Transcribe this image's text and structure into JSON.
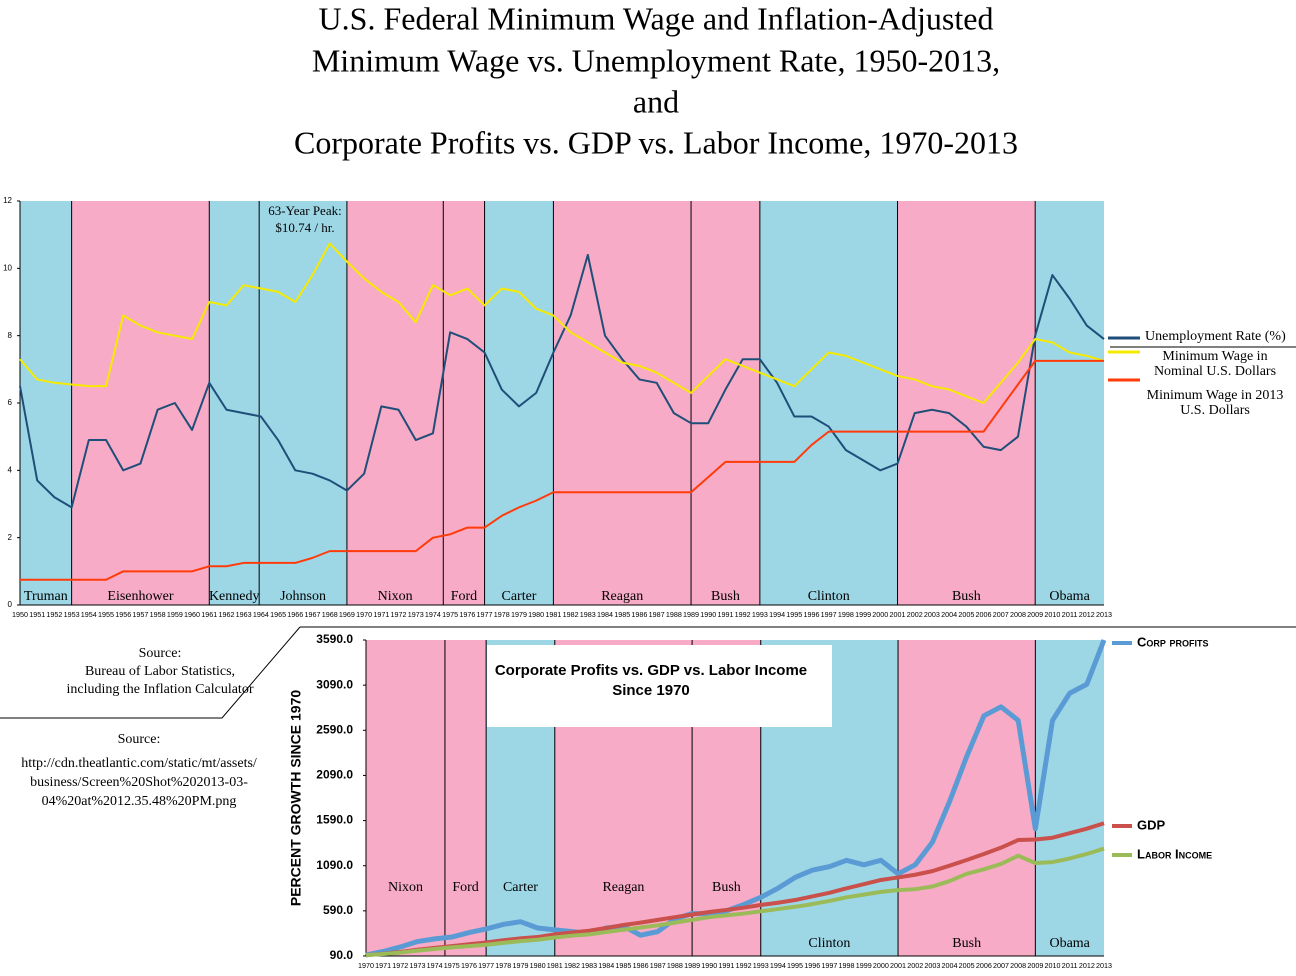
{
  "page_title": [
    "U.S. Federal Minimum Wage and Inflation-Adjusted",
    "Minimum Wage vs. Unemployment Rate, 1950-2013,",
    "and",
    "Corporate Profits vs. GDP vs. Labor Income, 1970-2013"
  ],
  "sources": [
    {
      "heading": "Source:",
      "lines": [
        "Bureau of Labor Statistics,",
        "including the Inflation Calculator"
      ]
    },
    {
      "heading": "Source:",
      "lines": [
        "http://cdn.theatlantic.com/static/mt/assets/",
        "business/Screen%20Shot%202013-03-",
        "04%20at%2012.35.48%20PM.png"
      ]
    }
  ],
  "chart_data": [
    {
      "type": "line",
      "annotation": [
        "63-Year Peak:",
        "$10.74 / hr."
      ],
      "x": [
        1950,
        1951,
        1952,
        1953,
        1954,
        1955,
        1956,
        1957,
        1958,
        1959,
        1960,
        1961,
        1962,
        1963,
        1964,
        1965,
        1966,
        1967,
        1968,
        1969,
        1970,
        1971,
        1972,
        1973,
        1974,
        1975,
        1976,
        1977,
        1978,
        1979,
        1980,
        1981,
        1982,
        1983,
        1984,
        1985,
        1986,
        1987,
        1988,
        1989,
        1990,
        1991,
        1992,
        1993,
        1994,
        1995,
        1996,
        1997,
        1998,
        1999,
        2000,
        2001,
        2002,
        2003,
        2004,
        2005,
        2006,
        2007,
        2008,
        2009,
        2010,
        2011,
        2012,
        2013
      ],
      "xlim": [
        1950,
        2013
      ],
      "ylim": [
        0,
        12
      ],
      "yticks": [
        0,
        2,
        4,
        6,
        8,
        10,
        12
      ],
      "grid": false,
      "bands": [
        {
          "label": "Truman",
          "start": 1950,
          "end": 1953,
          "color": "#9dd7e6"
        },
        {
          "label": "Eisenhower",
          "start": 1953,
          "end": 1961,
          "color": "#f8abc6"
        },
        {
          "label": "Kennedy",
          "start": 1961,
          "end": 1963.9,
          "color": "#9dd7e6"
        },
        {
          "label": "Johnson",
          "start": 1963.9,
          "end": 1969,
          "color": "#9dd7e6"
        },
        {
          "label": "Nixon",
          "start": 1969,
          "end": 1974.6,
          "color": "#f8abc6"
        },
        {
          "label": "Ford",
          "start": 1974.6,
          "end": 1977,
          "color": "#f8abc6"
        },
        {
          "label": "Carter",
          "start": 1977,
          "end": 1981,
          "color": "#9dd7e6"
        },
        {
          "label": "Reagan",
          "start": 1981,
          "end": 1989,
          "color": "#f8abc6"
        },
        {
          "label": "Bush",
          "start": 1989,
          "end": 1993,
          "color": "#f8abc6"
        },
        {
          "label": "Clinton",
          "start": 1993,
          "end": 2001,
          "color": "#9dd7e6"
        },
        {
          "label": "Bush",
          "start": 2001,
          "end": 2009,
          "color": "#f8abc6"
        },
        {
          "label": "Obama",
          "start": 2009,
          "end": 2013,
          "color": "#9dd7e6"
        }
      ],
      "series": [
        {
          "name": "Unemployment Rate (%)",
          "color": "#1f4e79",
          "values": [
            6.5,
            3.7,
            3.2,
            2.9,
            4.9,
            4.9,
            4.0,
            4.2,
            5.8,
            6.0,
            5.2,
            6.6,
            5.8,
            5.7,
            5.6,
            4.9,
            4.0,
            3.9,
            3.7,
            3.4,
            3.9,
            5.9,
            5.8,
            4.9,
            5.1,
            8.1,
            7.9,
            7.5,
            6.4,
            5.9,
            6.3,
            7.5,
            8.6,
            10.4,
            8.0,
            7.3,
            6.7,
            6.6,
            5.7,
            5.4,
            5.4,
            6.4,
            7.3,
            7.3,
            6.6,
            5.6,
            5.6,
            5.3,
            4.6,
            4.3,
            4.0,
            4.2,
            5.7,
            5.8,
            5.7,
            5.3,
            4.7,
            4.6,
            5.0,
            8.0,
            9.8,
            9.1,
            8.3,
            7.9
          ]
        },
        {
          "name": "Minimum Wage in Nominal U.S. Dollars",
          "color": "#f5ea00",
          "values": [
            7.3,
            6.7,
            6.6,
            6.55,
            6.5,
            6.5,
            8.6,
            8.3,
            8.1,
            8.0,
            7.9,
            9.0,
            8.9,
            9.5,
            9.4,
            9.3,
            9.0,
            9.8,
            10.74,
            10.2,
            9.7,
            9.3,
            9.0,
            8.4,
            9.5,
            9.2,
            9.4,
            8.9,
            9.4,
            9.3,
            8.8,
            8.6,
            8.1,
            7.8,
            7.5,
            7.2,
            7.1,
            6.9,
            6.6,
            6.3,
            6.8,
            7.3,
            7.1,
            6.9,
            6.7,
            6.5,
            7.0,
            7.5,
            7.4,
            7.2,
            7.0,
            6.8,
            6.7,
            6.5,
            6.4,
            6.2,
            6.0,
            6.6,
            7.2,
            7.9,
            7.8,
            7.5,
            7.4,
            7.25
          ]
        },
        {
          "name": "Minimum Wage in 2013 U.S. Dollars",
          "color": "#ff3b0a",
          "values": [
            0.75,
            0.75,
            0.75,
            0.75,
            0.75,
            0.75,
            1.0,
            1.0,
            1.0,
            1.0,
            1.0,
            1.15,
            1.15,
            1.25,
            1.25,
            1.25,
            1.25,
            1.4,
            1.6,
            1.6,
            1.6,
            1.6,
            1.6,
            1.6,
            2.0,
            2.1,
            2.3,
            2.3,
            2.65,
            2.9,
            3.1,
            3.35,
            3.35,
            3.35,
            3.35,
            3.35,
            3.35,
            3.35,
            3.35,
            3.35,
            3.8,
            4.25,
            4.25,
            4.25,
            4.25,
            4.25,
            4.75,
            5.15,
            5.15,
            5.15,
            5.15,
            5.15,
            5.15,
            5.15,
            5.15,
            5.15,
            5.15,
            5.85,
            6.55,
            7.25,
            7.25,
            7.25,
            7.25,
            7.25
          ]
        }
      ]
    },
    {
      "type": "line",
      "title": [
        "Corporate Profits vs. GDP vs. Labor Income",
        "Since 1970"
      ],
      "ylabel": "PERCENT GROWTH SINCE 1970",
      "x": [
        1970,
        1971,
        1972,
        1973,
        1974,
        1975,
        1976,
        1977,
        1978,
        1979,
        1980,
        1981,
        1982,
        1983,
        1984,
        1985,
        1986,
        1987,
        1988,
        1989,
        1990,
        1991,
        1992,
        1993,
        1994,
        1995,
        1996,
        1997,
        1998,
        1999,
        2000,
        2001,
        2002,
        2003,
        2004,
        2005,
        2006,
        2007,
        2008,
        2009,
        2010,
        2011,
        2012,
        2013
      ],
      "xlim": [
        1970,
        2013
      ],
      "ylim": [
        90,
        3590
      ],
      "yticks": [
        {
          "value": 90,
          "label": "90.0"
        },
        {
          "value": 590,
          "label": "590.0"
        },
        {
          "value": 1090,
          "label": "1090.0"
        },
        {
          "value": 1590,
          "label": "1590.0"
        },
        {
          "value": 2090,
          "label": "2090.0"
        },
        {
          "value": 2590,
          "label": "2590.0"
        },
        {
          "value": 3090,
          "label": "3090.0"
        },
        {
          "value": 3590,
          "label": "3590.0"
        }
      ],
      "grid": false,
      "bands": [
        {
          "label": "Nixon",
          "start": 1970,
          "end": 1974.6,
          "color": "#f8abc6"
        },
        {
          "label": "Ford",
          "start": 1974.6,
          "end": 1977,
          "color": "#f8abc6"
        },
        {
          "label": "Carter",
          "start": 1977,
          "end": 1981,
          "color": "#9dd7e6"
        },
        {
          "label": "Reagan",
          "start": 1981,
          "end": 1989,
          "color": "#f8abc6"
        },
        {
          "label": "Bush",
          "start": 1989,
          "end": 1993,
          "color": "#f8abc6"
        },
        {
          "label": "Clinton",
          "start": 1993,
          "end": 2001,
          "color": "#9dd7e6"
        },
        {
          "label": "Bush",
          "start": 2001,
          "end": 2009,
          "color": "#f8abc6"
        },
        {
          "label": "Obama",
          "start": 2009,
          "end": 2013,
          "color": "#9dd7e6"
        }
      ],
      "series": [
        {
          "name": "Corp profits",
          "color": "#5b9bd5",
          "values": [
            100,
            140,
            190,
            250,
            280,
            300,
            350,
            390,
            440,
            470,
            400,
            380,
            360,
            340,
            400,
            420,
            320,
            360,
            500,
            560,
            560,
            590,
            660,
            740,
            840,
            960,
            1040,
            1080,
            1150,
            1100,
            1150,
            1000,
            1100,
            1350,
            1800,
            2300,
            2750,
            2850,
            2700,
            1500,
            2700,
            3000,
            3100,
            3590
          ]
        },
        {
          "name": "GDP",
          "color": "#c9504b",
          "values": [
            100,
            115,
            135,
            160,
            180,
            200,
            220,
            240,
            265,
            285,
            300,
            330,
            350,
            370,
            400,
            433,
            460,
            490,
            520,
            550,
            577,
            600,
            625,
            655,
            680,
            710,
            750,
            790,
            840,
            885,
            932,
            960,
            990,
            1030,
            1090,
            1153,
            1220,
            1290,
            1375,
            1380,
            1400,
            1450,
            1500,
            1560
          ]
        },
        {
          "name": "Labor Income",
          "color": "#9bbb59",
          "values": [
            100,
            112,
            128,
            150,
            168,
            185,
            200,
            215,
            235,
            255,
            270,
            295,
            315,
            330,
            355,
            380,
            405,
            430,
            460,
            490,
            520,
            540,
            560,
            585,
            610,
            635,
            665,
            700,
            740,
            770,
            800,
            820,
            830,
            860,
            920,
            1000,
            1050,
            1110,
            1200,
            1120,
            1130,
            1170,
            1220,
            1280
          ]
        }
      ]
    }
  ]
}
